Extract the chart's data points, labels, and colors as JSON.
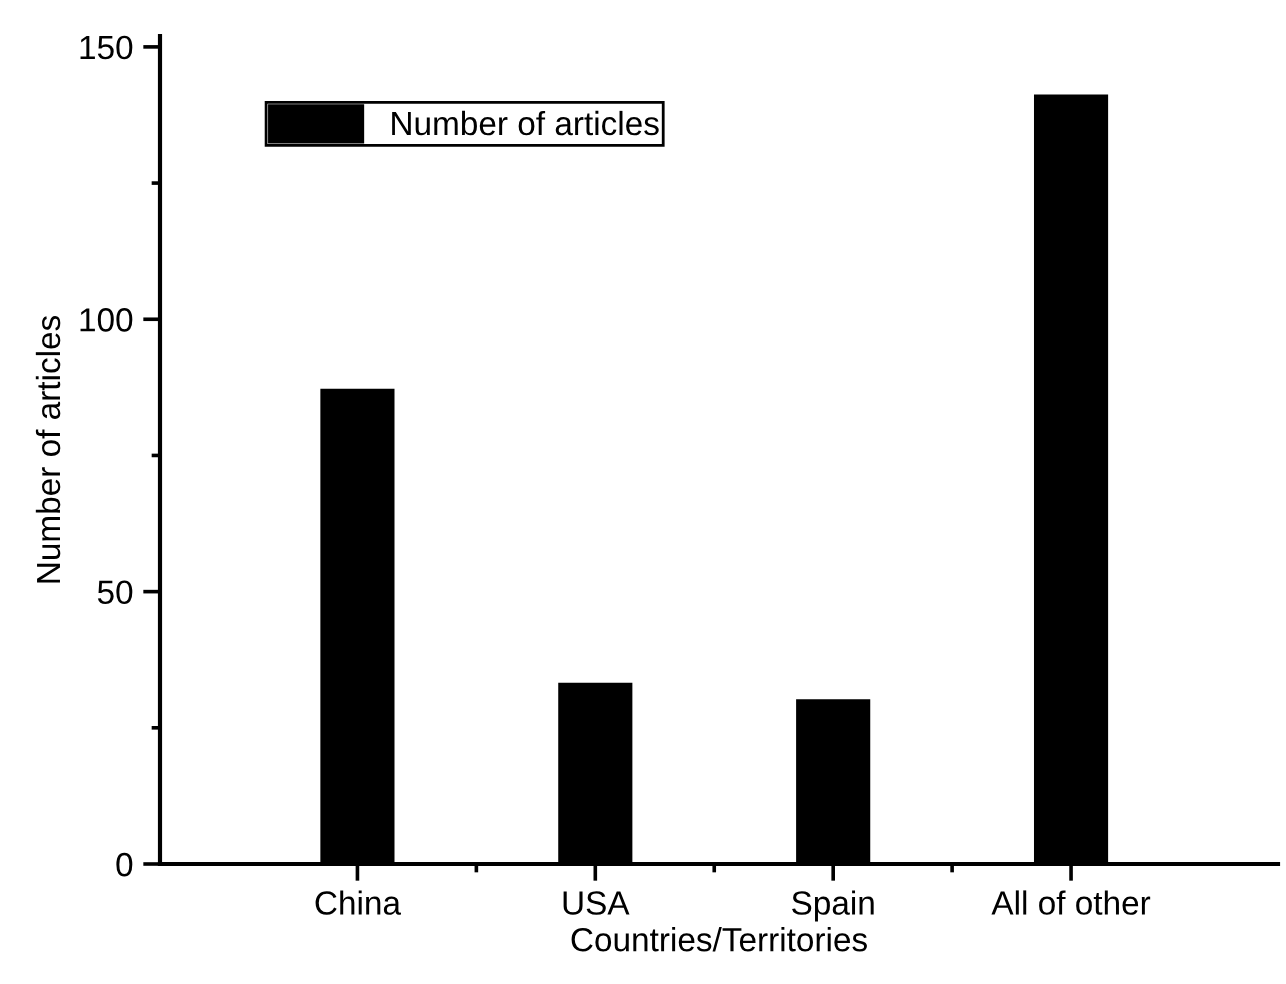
{
  "chart_data": {
    "type": "bar",
    "xlabel": "Countries/Territories",
    "ylabel": "Number of articles",
    "categories": [
      "China",
      "USA",
      "Spain",
      "All of other"
    ],
    "series": [
      {
        "name": "Number of articles",
        "color": "#000000",
        "values": [
          87,
          33,
          30,
          141
        ]
      }
    ],
    "ylim": [
      0,
      152
    ],
    "yticks": [
      0,
      50,
      100,
      150
    ],
    "grid": false,
    "legend": "top left"
  }
}
